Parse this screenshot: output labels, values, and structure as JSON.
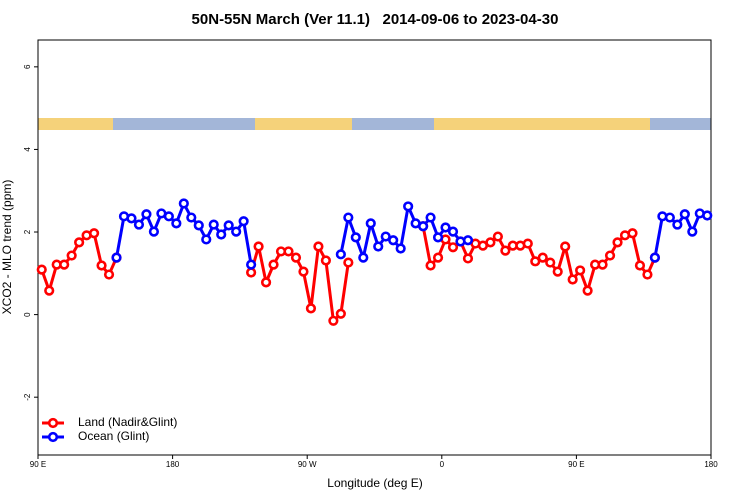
{
  "chart_data": {
    "type": "line",
    "title": "50N-55N March (Ver 11.1)   2014-09-06 to 2023-04-30",
    "x_label": "Longitude (deg E)",
    "y_label": "XCO2 - MLO trend (ppm)",
    "xlim": [
      90,
      540
    ],
    "ylim": [
      -3.4,
      6.65
    ],
    "xticks": [
      {
        "value": 90,
        "label": "90 E"
      },
      {
        "value": 180,
        "label": "180"
      },
      {
        "value": 270,
        "label": "90 W"
      },
      {
        "value": 360,
        "label": "0"
      },
      {
        "value": 450,
        "label": "90 E"
      },
      {
        "value": 540,
        "label": "180"
      }
    ],
    "yticks": [
      -2,
      0,
      2,
      4,
      6
    ],
    "legend": "bottom-left",
    "x": [
      92.5,
      97.5,
      102.5,
      107.5,
      112.5,
      117.5,
      122.5,
      127.5,
      132.5,
      137.5,
      142.5,
      147.5,
      152.5,
      157.5,
      162.5,
      167.5,
      172.5,
      177.5,
      182.5,
      187.5,
      192.5,
      197.5,
      202.5,
      207.5,
      212.5,
      217.5,
      222.5,
      227.5,
      232.5,
      237.5,
      242.5,
      247.5,
      252.5,
      257.5,
      262.5,
      267.5,
      272.5,
      277.5,
      282.5,
      287.5,
      292.5,
      297.5,
      302.5,
      307.5,
      312.5,
      317.5,
      322.5,
      327.5,
      332.5,
      337.5,
      342.5,
      347.5,
      352.5,
      357.5,
      362.5,
      367.5,
      372.5,
      377.5,
      382.5,
      387.5,
      392.5,
      397.5,
      402.5,
      407.5,
      412.5,
      417.5,
      422.5,
      427.5,
      432.5,
      437.5,
      442.5,
      447.5,
      452.5,
      457.5,
      462.5,
      467.5,
      472.5,
      477.5,
      482.5,
      487.5,
      492.5,
      497.5,
      502.5,
      507.5,
      512.5,
      517.5,
      522.5,
      527.5,
      532.5,
      537.5
    ],
    "series": [
      {
        "name": "Land (Nadir&Glint)",
        "color": "#ff0000",
        "values": [
          1.09,
          0.58,
          1.21,
          1.21,
          1.43,
          1.75,
          1.92,
          1.97,
          1.19,
          0.97,
          1.38,
          null,
          null,
          null,
          null,
          null,
          null,
          null,
          null,
          null,
          null,
          null,
          null,
          null,
          null,
          null,
          null,
          null,
          1.02,
          1.65,
          0.78,
          1.21,
          1.53,
          1.53,
          1.38,
          1.04,
          0.15,
          1.65,
          1.31,
          -0.15,
          0.02,
          1.26,
          null,
          null,
          null,
          null,
          null,
          null,
          null,
          null,
          null,
          2.14,
          1.19,
          1.38,
          1.82,
          1.63,
          1.77,
          1.36,
          1.72,
          1.67,
          1.75,
          1.89,
          1.55,
          1.67,
          1.67,
          1.72,
          1.29,
          1.38,
          1.26,
          1.04,
          1.65,
          0.85,
          1.07,
          0.58,
          1.21,
          1.21,
          1.43,
          1.75,
          1.92,
          1.97,
          1.19,
          0.97,
          1.38,
          null,
          null,
          null,
          null,
          null,
          null,
          null
        ]
      },
      {
        "name": "Ocean (Glint)",
        "color": "#0000ff",
        "values": [
          null,
          null,
          null,
          null,
          null,
          null,
          null,
          null,
          null,
          null,
          1.38,
          2.38,
          2.33,
          2.18,
          2.43,
          2.01,
          2.45,
          2.38,
          2.21,
          2.69,
          2.35,
          2.16,
          1.82,
          2.18,
          1.94,
          2.16,
          2.01,
          2.26,
          1.21,
          null,
          null,
          null,
          null,
          null,
          null,
          null,
          null,
          null,
          null,
          null,
          1.46,
          2.35,
          1.87,
          1.38,
          2.21,
          1.65,
          1.89,
          1.8,
          1.6,
          2.62,
          2.21,
          2.14,
          2.35,
          1.87,
          2.11,
          2.01,
          1.77,
          1.8,
          null,
          null,
          null,
          null,
          null,
          null,
          null,
          null,
          null,
          null,
          null,
          null,
          null,
          null,
          null,
          null,
          null,
          null,
          null,
          null,
          null,
          null,
          null,
          null,
          1.38,
          2.38,
          2.35,
          2.18,
          2.43,
          2.01,
          2.45,
          2.4
        ]
      }
    ]
  }
}
